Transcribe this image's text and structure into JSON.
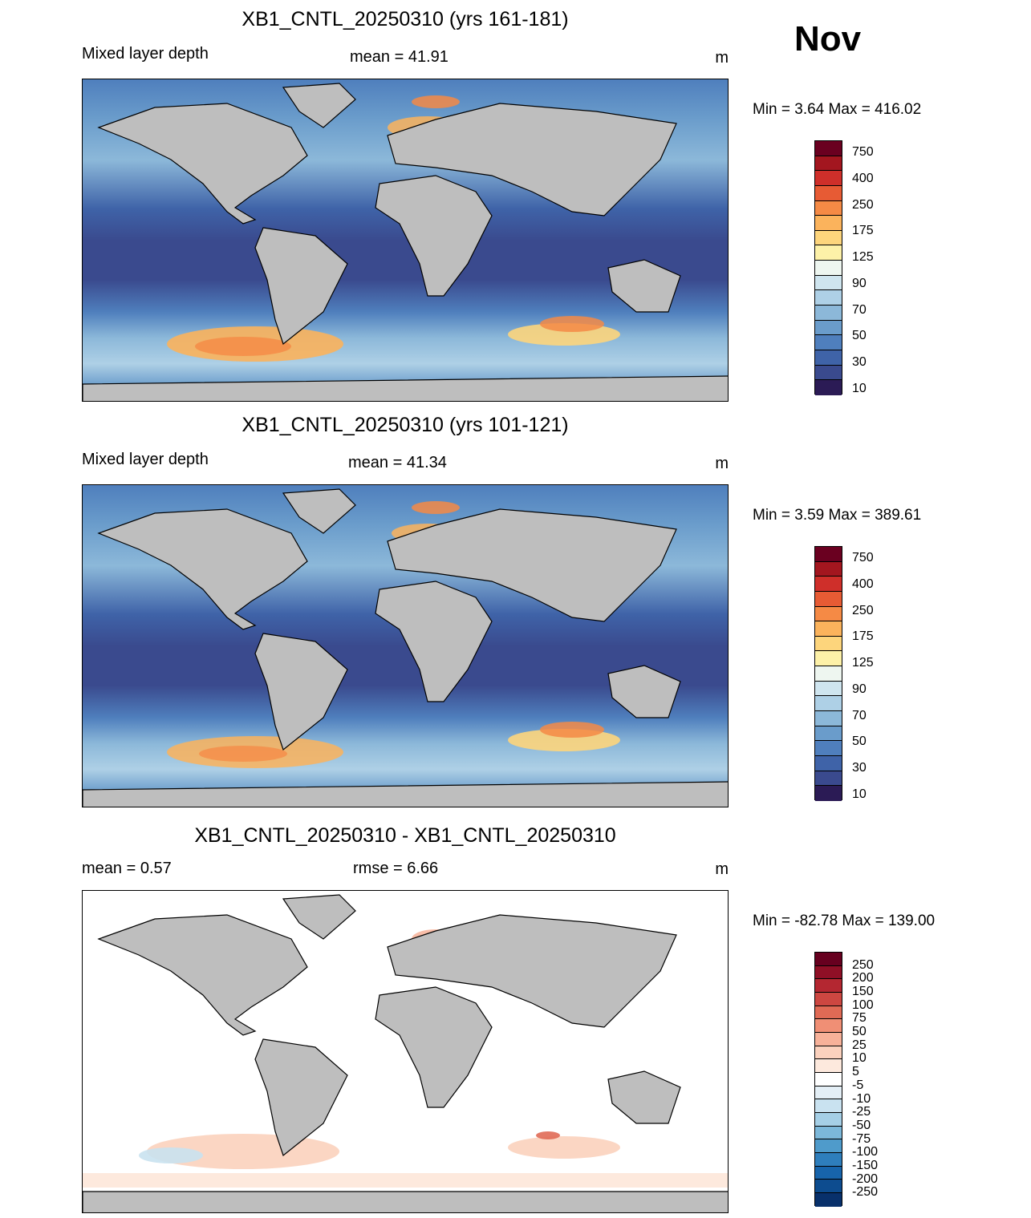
{
  "month": "Nov",
  "units": "m",
  "colors": {
    "land": "#bebebe",
    "mld_scale": [
      "#2b1b55",
      "#3a4a8e",
      "#3f63a8",
      "#4f7fbd",
      "#6a9ccb",
      "#8cb8d9",
      "#aed0e6",
      "#cfe5ef",
      "#eef6f0",
      "#fdf1a8",
      "#fdd57c",
      "#fbb35c",
      "#f58a45",
      "#e75b34",
      "#cf2f2a",
      "#a3161f",
      "#6a0020"
    ],
    "diff_scale": [
      "#08306b",
      "#0d4c8f",
      "#1764ab",
      "#2e7ebc",
      "#4f9bcb",
      "#7cb8da",
      "#a5cfe6",
      "#c9e2f0",
      "#e4eff6",
      "#ffffff",
      "#fde9dd",
      "#fbd1bd",
      "#f7b199",
      "#f08f75",
      "#e06a55",
      "#cd4741",
      "#b42731",
      "#8f0f26",
      "#67001f"
    ]
  },
  "panels": [
    {
      "title": "XB1_CNTL_20250310 (yrs 161-181)",
      "left_label": "Mixed layer depth",
      "mid_label": "mean =  41.91",
      "right_label": "m",
      "minmax": "Min =    3.64 Max = 416.02",
      "colorbar_ticks": [
        "750",
        "400",
        "250",
        "175",
        "125",
        "90",
        "70",
        "50",
        "30",
        "10"
      ]
    },
    {
      "title": "XB1_CNTL_20250310 (yrs 101-121)",
      "left_label": "Mixed layer depth",
      "mid_label": "mean =  41.34",
      "right_label": "m",
      "minmax": "Min =    3.59 Max = 389.61",
      "colorbar_ticks": [
        "750",
        "400",
        "250",
        "175",
        "125",
        "90",
        "70",
        "50",
        "30",
        "10"
      ]
    },
    {
      "title": "XB1_CNTL_20250310 - XB1_CNTL_20250310",
      "left_label": "mean =   0.57",
      "mid_label": "rmse =   6.66",
      "right_label": "m",
      "minmax": "Min = -82.78 Max = 139.00",
      "colorbar_ticks": [
        "250",
        "200",
        "150",
        "100",
        "75",
        "50",
        "25",
        "10",
        "5",
        "-5",
        "-10",
        "-25",
        "-50",
        "-75",
        "-100",
        "-150",
        "-200",
        "-250"
      ]
    }
  ]
}
